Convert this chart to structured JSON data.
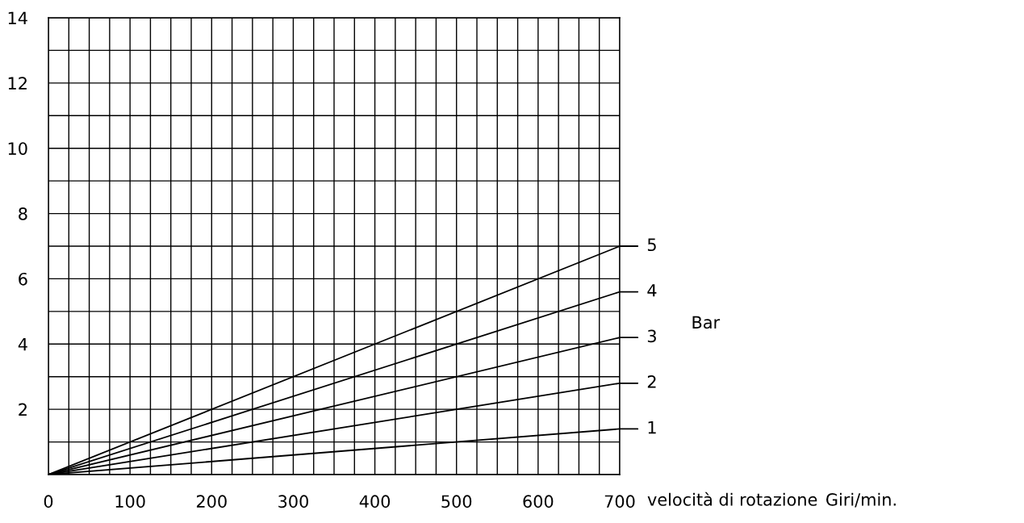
{
  "chart_data": {
    "type": "line",
    "xlabel": "velocità di rotazione",
    "legend_title": "Bar",
    "annotations": [
      "Giri/min."
    ],
    "x": [
      0,
      700
    ],
    "series": [
      {
        "name": "1",
        "color": "#000000",
        "values": [
          0,
          1.4
        ]
      },
      {
        "name": "2",
        "color": "#000000",
        "values": [
          0,
          2.8
        ]
      },
      {
        "name": "3",
        "color": "#000000",
        "values": [
          0,
          4.2
        ]
      },
      {
        "name": "4",
        "color": "#000000",
        "values": [
          0,
          5.6
        ]
      },
      {
        "name": "5",
        "color": "#000000",
        "values": [
          0,
          7
        ]
      }
    ],
    "xlim": [
      0,
      700
    ],
    "ylim": [
      0,
      14
    ],
    "xticks": [
      0,
      {
        "value": 25,
        "label": null
      },
      {
        "value": 50,
        "label": null
      },
      {
        "value": 75,
        "label": null
      },
      100,
      {
        "value": 125,
        "label": null
      },
      {
        "value": 150,
        "label": null
      },
      {
        "value": 175,
        "label": null
      },
      200,
      {
        "value": 225,
        "label": null
      },
      {
        "value": 250,
        "label": null
      },
      {
        "value": 275,
        "label": null
      },
      300,
      {
        "value": 325,
        "label": null
      },
      {
        "value": 350,
        "label": null
      },
      {
        "value": 375,
        "label": null
      },
      400,
      {
        "value": 425,
        "label": null
      },
      {
        "value": 450,
        "label": null
      },
      {
        "value": 475,
        "label": null
      },
      500,
      {
        "value": 525,
        "label": null
      },
      {
        "value": 550,
        "label": null
      },
      {
        "value": 575,
        "label": null
      },
      600,
      {
        "value": 625,
        "label": null
      },
      {
        "value": 650,
        "label": null
      },
      {
        "value": 675,
        "label": null
      },
      700
    ],
    "yticks": [
      {
        "value": 0,
        "label": null
      },
      {
        "value": 1,
        "label": null
      },
      2,
      {
        "value": 3,
        "label": null
      },
      4,
      {
        "value": 5,
        "label": null
      },
      6,
      {
        "value": 7,
        "label": null
      },
      8,
      {
        "value": 9,
        "label": null
      },
      10,
      {
        "value": 11,
        "label": null
      },
      12,
      {
        "value": 13,
        "label": null
      },
      14
    ],
    "grid": true,
    "legend": "right",
    "marker": "none",
    "line_style": "solid"
  }
}
